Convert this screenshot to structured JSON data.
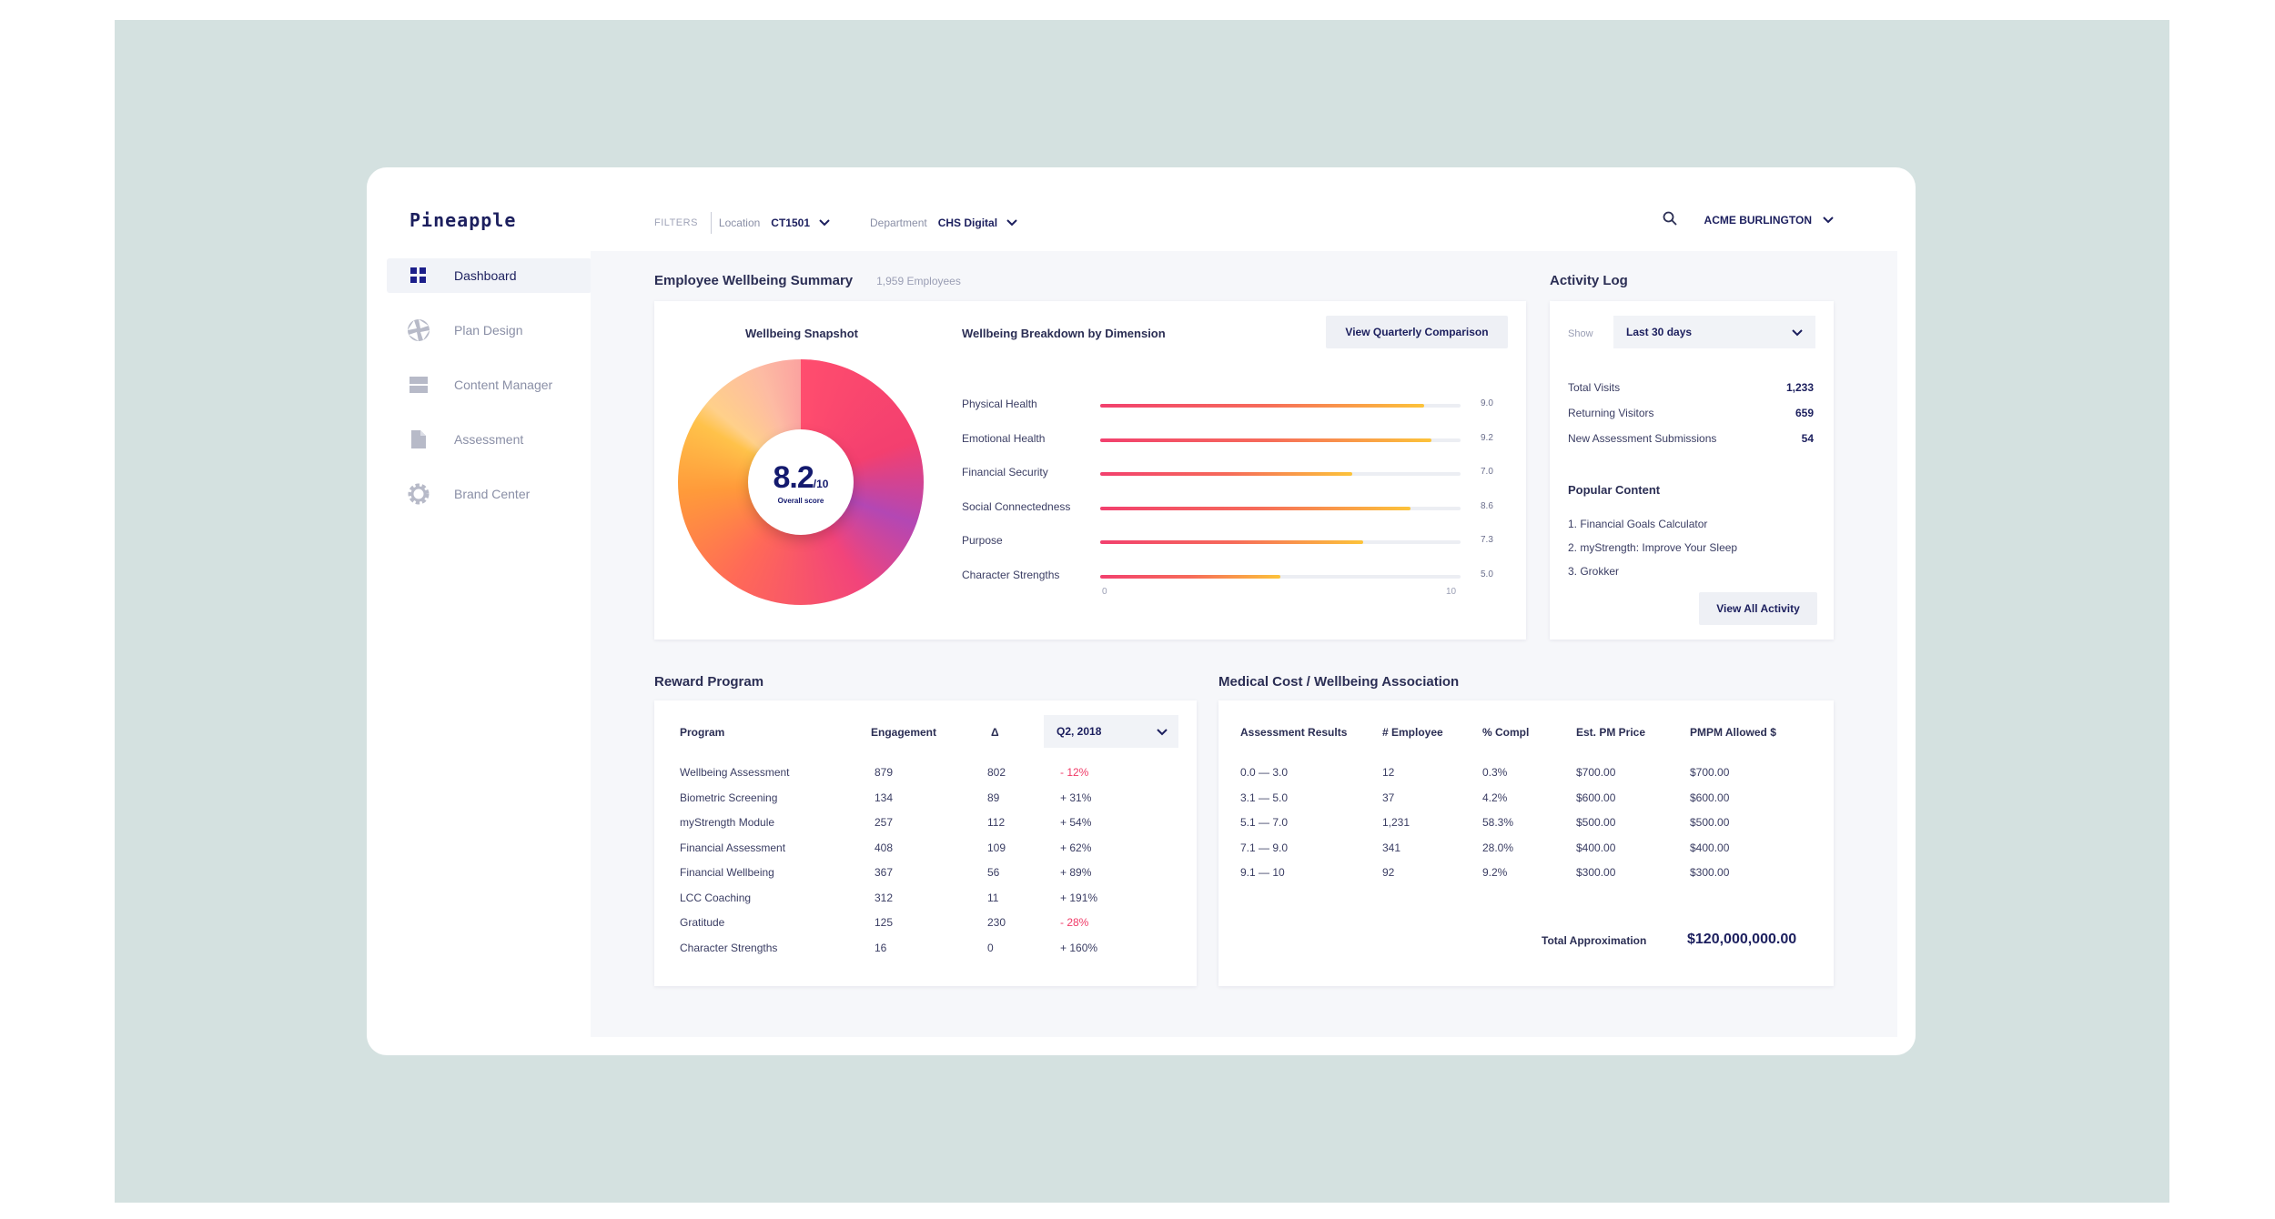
{
  "app": {
    "logo": "Pineapple"
  },
  "sidebar": {
    "items": [
      {
        "label": "Dashboard",
        "icon": "dashboard-grid-icon",
        "active": true
      },
      {
        "label": "Plan Design",
        "icon": "aperture-icon",
        "active": false
      },
      {
        "label": "Content Manager",
        "icon": "layout-icon",
        "active": false
      },
      {
        "label": "Assessment",
        "icon": "document-icon",
        "active": false
      },
      {
        "label": "Brand Center",
        "icon": "gear-icon",
        "active": false
      }
    ]
  },
  "filters": {
    "label": "FILTERS",
    "location": {
      "label": "Location",
      "value": "CT1501"
    },
    "department": {
      "label": "Department",
      "value": "CHS Digital"
    }
  },
  "account": {
    "name": "ACME BURLINGTON"
  },
  "summary": {
    "title": "Employee Wellbeing Summary",
    "employees": "1,959 Employees",
    "snapshot": {
      "title": "Wellbeing Snapshot",
      "score": "8.2",
      "scale": "/10",
      "label": "Overall score"
    },
    "breakdown": {
      "title": "Wellbeing Breakdown by Dimension",
      "button": "View Quarterly Comparison",
      "axis_min": "0",
      "axis_max": "10",
      "dimensions": [
        {
          "label": "Physical Health",
          "value": 9.0,
          "display": "9.0"
        },
        {
          "label": "Emotional Health",
          "value": 9.2,
          "display": "9.2"
        },
        {
          "label": "Financial Security",
          "value": 7.0,
          "display": "7.0"
        },
        {
          "label": "Social Connectedness",
          "value": 8.6,
          "display": "8.6"
        },
        {
          "label": "Purpose",
          "value": 7.3,
          "display": "7.3"
        },
        {
          "label": "Character Strengths",
          "value": 5.0,
          "display": "5.0"
        }
      ]
    }
  },
  "activity": {
    "title": "Activity Log",
    "show_label": "Show",
    "period": "Last 30 days",
    "stats": [
      {
        "label": "Total Visits",
        "value": "1,233"
      },
      {
        "label": "Returning Visitors",
        "value": "659"
      },
      {
        "label": "New Assessment Submissions",
        "value": "54"
      }
    ],
    "popular_title": "Popular Content",
    "popular": [
      "1. Financial Goals Calculator",
      "2. myStrength: Improve Your Sleep",
      "3. Grokker"
    ],
    "button": "View All Activity"
  },
  "reward": {
    "title": "Reward Program",
    "headers": {
      "program": "Program",
      "engagement": "Engagement",
      "delta": "Δ"
    },
    "quarter": "Q2, 2018",
    "rows": [
      {
        "program": "Wellbeing Assessment",
        "engagement": "879",
        "delta": "802",
        "change": "- 12%",
        "negative": true
      },
      {
        "program": "Biometric Screening",
        "engagement": "134",
        "delta": "89",
        "change": "+ 31%",
        "negative": false
      },
      {
        "program": "myStrength Module",
        "engagement": "257",
        "delta": "112",
        "change": "+ 54%",
        "negative": false
      },
      {
        "program": "Financial Assessment",
        "engagement": "408",
        "delta": "109",
        "change": "+ 62%",
        "negative": false
      },
      {
        "program": "Financial Wellbeing",
        "engagement": "367",
        "delta": "56",
        "change": "+ 89%",
        "negative": false
      },
      {
        "program": "LCC Coaching",
        "engagement": "312",
        "delta": "11",
        "change": "+ 191%",
        "negative": false
      },
      {
        "program": "Gratitude",
        "engagement": "125",
        "delta": "230",
        "change": "- 28%",
        "negative": true
      },
      {
        "program": "Character Strengths",
        "engagement": "16",
        "delta": "0",
        "change": "+ 160%",
        "negative": false
      }
    ]
  },
  "medical": {
    "title": "Medical Cost / Wellbeing Association",
    "headers": [
      "Assessment Results",
      "# Employee",
      "% Compl",
      "Est. PM Price",
      "PMPM Allowed $"
    ],
    "rows": [
      [
        "0.0 — 3.0",
        "12",
        "0.3%",
        "$700.00",
        "$700.00"
      ],
      [
        "3.1 — 5.0",
        "37",
        "4.2%",
        "$600.00",
        "$600.00"
      ],
      [
        "5.1 — 7.0",
        "1,231",
        "58.3%",
        "$500.00",
        "$500.00"
      ],
      [
        "7.1 — 9.0",
        "341",
        "28.0%",
        "$400.00",
        "$400.00"
      ],
      [
        "9.1 — 10",
        "92",
        "9.2%",
        "$300.00",
        "$300.00"
      ]
    ],
    "total_label": "Total Approximation",
    "total_value": "$120,000,000.00"
  },
  "colors": {
    "accent": "#1c1f5e",
    "negative": "#f03a67",
    "backdrop": "#d4e1e0"
  }
}
